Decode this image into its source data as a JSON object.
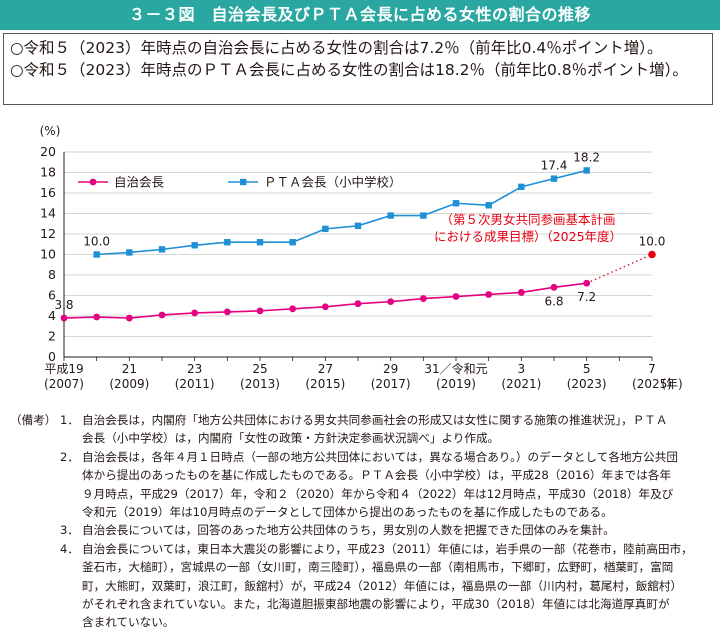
{
  "title": "３－３図　自治会長及びＰＴＡ会長に占める女性の割合の推移",
  "summary": [
    "○令和５（2023）年時点の自治会長に占める女性の割合は7.2％（前年比0.4％ポイント増）。",
    "○令和５（2023）年時点のＰＴＡ会長に占める女性の割合は18.2％（前年比0.8％ポイント増）。"
  ],
  "chart_data": {
    "type": "line",
    "ylabel": "(%)",
    "ylim": [
      0,
      20
    ],
    "yticks": [
      "0",
      "2",
      "4",
      "6",
      "8",
      "10",
      "12",
      "14",
      "16",
      "18",
      "20"
    ],
    "xlim": [
      2007,
      2025
    ],
    "x_tick_labels": [
      {
        "x": 2007,
        "top": "平成19",
        "bottom": "(2007)"
      },
      {
        "x": 2009,
        "top": "21",
        "bottom": "(2009)"
      },
      {
        "x": 2011,
        "top": "23",
        "bottom": "(2011)"
      },
      {
        "x": 2013,
        "top": "25",
        "bottom": "(2013)"
      },
      {
        "x": 2015,
        "top": "27",
        "bottom": "(2015)"
      },
      {
        "x": 2017,
        "top": "29",
        "bottom": "(2017)"
      },
      {
        "x": 2019,
        "top": "31／令和元",
        "bottom": "(2019)"
      },
      {
        "x": 2021,
        "top": "3",
        "bottom": "(2021)"
      },
      {
        "x": 2023,
        "top": "5",
        "bottom": "(2023)"
      },
      {
        "x": 2025,
        "top": "7",
        "bottom": "(2025)"
      }
    ],
    "x_unit": "(年)",
    "legend_position": "top-left",
    "series": [
      {
        "name": "自治会長",
        "color": "#e4007f",
        "marker": "circle",
        "x": [
          2007,
          2008,
          2009,
          2010,
          2011,
          2012,
          2013,
          2014,
          2015,
          2016,
          2017,
          2018,
          2019,
          2020,
          2021,
          2022,
          2023
        ],
        "values": [
          3.8,
          3.9,
          3.8,
          4.1,
          4.3,
          4.4,
          4.5,
          4.7,
          4.9,
          5.2,
          5.4,
          5.7,
          5.9,
          6.1,
          6.3,
          6.8,
          7.2
        ]
      },
      {
        "name": "ＰＴＡ会長（小中学校）",
        "color": "#1f8fd6",
        "marker": "square",
        "x": [
          2008,
          2009,
          2010,
          2011,
          2012,
          2013,
          2014,
          2015,
          2016,
          2017,
          2018,
          2019,
          2020,
          2021,
          2022,
          2023
        ],
        "values": [
          10.0,
          10.2,
          10.5,
          10.9,
          11.2,
          11.2,
          11.2,
          12.5,
          12.8,
          13.8,
          13.8,
          15.0,
          14.8,
          16.6,
          17.4,
          18.2
        ]
      }
    ],
    "data_labels": [
      {
        "series": 0,
        "x": 2007,
        "text": "3.8"
      },
      {
        "series": 0,
        "x": 2022,
        "text": "6.8"
      },
      {
        "series": 0,
        "x": 2023,
        "text": "7.2"
      },
      {
        "series": 1,
        "x": 2008,
        "text": "10.0"
      },
      {
        "series": 1,
        "x": 2022,
        "text": "17.4"
      },
      {
        "series": 1,
        "x": 2023,
        "text": "18.2"
      }
    ],
    "target": {
      "from_x": 2023,
      "from_y": 7.2,
      "x": 2025,
      "y": 10.0,
      "label": "10.0",
      "annotation": [
        "（第５次男女共同参画基本計画",
        "における成果目標）（2025年度）"
      ],
      "color": "#e60012"
    }
  },
  "notes": {
    "head": "（備考）",
    "items": [
      {
        "num": "1．",
        "lines": [
          "自治会長は，内閣府「地方公共団体における男女共同参画社会の形成又は女性に関する施策の推進状況」，ＰＴＡ",
          "会長（小中学校）は，内閣府「女性の政策・方針決定参画状況調べ」より作成。"
        ]
      },
      {
        "num": "2．",
        "lines": [
          "自治会長は，各年４月１日時点（一部の地方公共団体においては，異なる場合あり。）のデータとして各地方公共団",
          "体から提出のあったものを基に作成したものである。ＰＴＡ会長（小中学校）は，平成28（2016）年までは各年",
          "９月時点，平成29（2017）年，令和２（2020）年から令和４（2022）年は12月時点，平成30（2018）年及び",
          "令和元（2019）年は10月時点のデータとして団体から提出のあったものを基に作成したものである。"
        ]
      },
      {
        "num": "3．",
        "lines": [
          "自治会長については，回答のあった地方公共団体のうち，男女別の人数を把握できた団体のみを集計。"
        ]
      },
      {
        "num": "4．",
        "lines": [
          "自治会長については，東日本大震災の影響により，平成23（2011）年値には，岩手県の一部（花巻市，陸前高田市，",
          "釜石市，大槌町），宮城県の一部（女川町，南三陸町），福島県の一部（南相馬市，下郷町，広野町，楢葉町，富岡",
          "町，大熊町，双葉町，浪江町，飯舘村）が，平成24（2012）年値には，福島県の一部（川内村，葛尾村，飯舘村）",
          "がそれぞれ含まれていない。また，北海道胆振東部地震の影響により，平成30（2018）年値には北海道厚真町が",
          "含まれていない。"
        ]
      }
    ]
  }
}
